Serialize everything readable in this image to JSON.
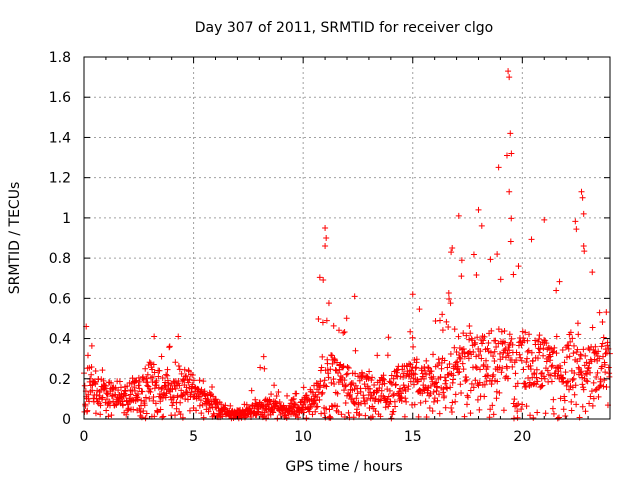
{
  "chart_data": {
    "type": "scatter",
    "title": "Day 307 of 2011, SRMTID for receiver clgo",
    "xlabel": "GPS time / hours",
    "ylabel": "SRMTID / TECUs",
    "xlim": [
      0,
      24
    ],
    "ylim": [
      0,
      1.8
    ],
    "xticks": [
      0,
      5,
      10,
      15,
      20
    ],
    "yticks": [
      0,
      0.2,
      0.4,
      0.6,
      0.8,
      1,
      1.2,
      1.4,
      1.6,
      1.8
    ],
    "x_tick_labels": [
      "0",
      "5",
      "10",
      "15",
      "20"
    ],
    "y_tick_labels": [
      "0",
      "0.2",
      "0.4",
      "0.6",
      "0.8",
      "1",
      "1.2",
      "1.4",
      "1.6",
      "1.8"
    ],
    "grid": true,
    "marker": "+",
    "color": "#ff0000",
    "envelope_hours": [
      0,
      0.5,
      1,
      1.5,
      2,
      2.5,
      3,
      3.5,
      4,
      4.5,
      5,
      5.5,
      6,
      6.5,
      7,
      7.5,
      8,
      8.5,
      9,
      9.5,
      10,
      10.5,
      11,
      11.5,
      12,
      12.5,
      13,
      13.5,
      14,
      14.5,
      15,
      15.5,
      16,
      16.5,
      17,
      17.5,
      18,
      18.5,
      19,
      19.5,
      20,
      20.5,
      21,
      21.5,
      22,
      22.5,
      23,
      23.5,
      24
    ],
    "envelope_median": [
      0.16,
      0.15,
      0.13,
      0.1,
      0.12,
      0.15,
      0.2,
      0.18,
      0.17,
      0.19,
      0.15,
      0.12,
      0.08,
      0.03,
      0.03,
      0.04,
      0.06,
      0.07,
      0.05,
      0.05,
      0.07,
      0.12,
      0.25,
      0.2,
      0.18,
      0.15,
      0.15,
      0.14,
      0.16,
      0.18,
      0.2,
      0.22,
      0.18,
      0.22,
      0.3,
      0.3,
      0.28,
      0.3,
      0.32,
      0.3,
      0.28,
      0.3,
      0.28,
      0.25,
      0.25,
      0.3,
      0.25,
      0.25,
      0.3
    ],
    "envelope_max": [
      0.45,
      0.35,
      0.25,
      0.2,
      0.25,
      0.3,
      0.42,
      0.32,
      0.4,
      0.3,
      0.25,
      0.2,
      0.15,
      0.08,
      0.07,
      0.1,
      0.3,
      0.2,
      0.12,
      0.12,
      0.15,
      0.45,
      0.95,
      0.45,
      0.6,
      0.35,
      0.3,
      0.35,
      0.5,
      0.42,
      0.62,
      0.5,
      0.55,
      0.85,
      1.0,
      0.85,
      1.05,
      0.95,
      1.73,
      1.1,
      0.85,
      0.95,
      0.8,
      0.85,
      0.78,
      1.13,
      0.75,
      0.72,
      0.75
    ],
    "notable_points": [
      {
        "x": 19.35,
        "y": 1.73
      },
      {
        "x": 19.4,
        "y": 1.7
      },
      {
        "x": 19.45,
        "y": 1.42
      },
      {
        "x": 19.3,
        "y": 1.31
      },
      {
        "x": 19.5,
        "y": 1.32
      },
      {
        "x": 19.4,
        "y": 1.13
      },
      {
        "x": 22.7,
        "y": 1.13
      },
      {
        "x": 22.75,
        "y": 1.1
      },
      {
        "x": 22.8,
        "y": 1.02
      },
      {
        "x": 22.8,
        "y": 0.86
      },
      {
        "x": 18.0,
        "y": 1.04
      },
      {
        "x": 17.1,
        "y": 1.01
      },
      {
        "x": 21.0,
        "y": 0.99
      },
      {
        "x": 11.0,
        "y": 0.95
      },
      {
        "x": 11.05,
        "y": 0.9
      },
      {
        "x": 11.0,
        "y": 0.86
      },
      {
        "x": 16.8,
        "y": 0.85
      },
      {
        "x": 16.75,
        "y": 0.83
      },
      {
        "x": 18.85,
        "y": 0.82
      },
      {
        "x": 12.35,
        "y": 0.61
      },
      {
        "x": 15.0,
        "y": 0.62
      },
      {
        "x": 4.3,
        "y": 0.41
      },
      {
        "x": 3.2,
        "y": 0.41
      },
      {
        "x": 0.1,
        "y": 0.46
      },
      {
        "x": 8.2,
        "y": 0.31
      }
    ]
  }
}
